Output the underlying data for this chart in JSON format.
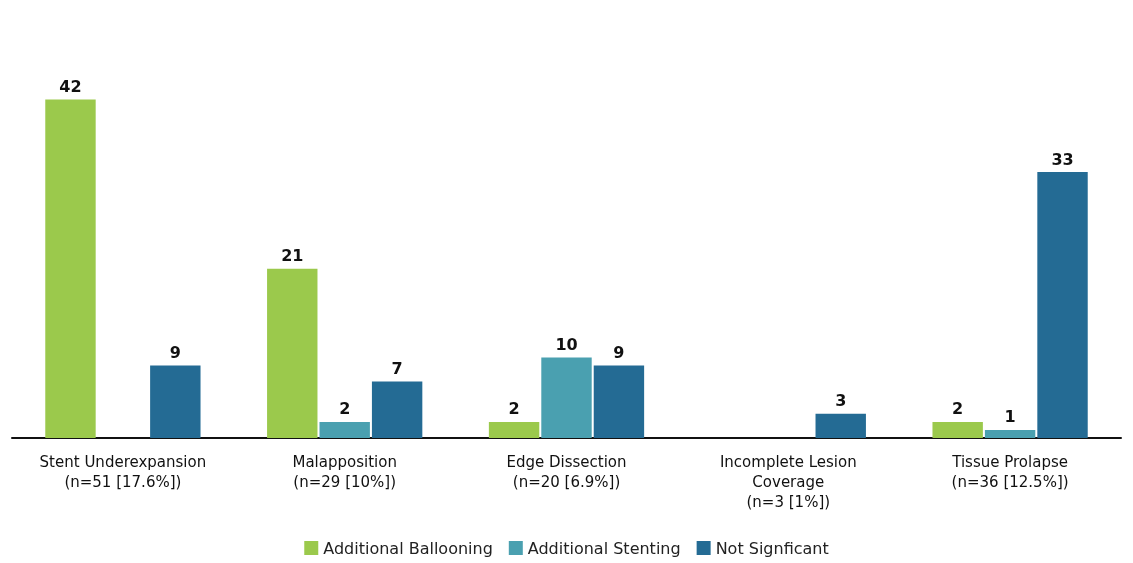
{
  "chart_data": {
    "type": "bar",
    "categories": [
      "Stent Underexpansion\n(n=51 [17.6%])",
      "Malapposition\n(n=29 [10%])",
      "Edge Dissection\n(n=20 [6.9%])",
      "Incomplete Lesion\nCoverage\n(n=3 [1%])",
      "Tissue Prolapse\n(n=36 [12.5%])"
    ],
    "series": [
      {
        "name": "Additional Ballooning",
        "color": "#9bc94c",
        "values": [
          42,
          21,
          2,
          null,
          2
        ]
      },
      {
        "name": "Additional Stenting",
        "color": "#4aa0b0",
        "values": [
          null,
          2,
          10,
          null,
          1
        ]
      },
      {
        "name": "Not Signficant",
        "color": "#246b94",
        "values": [
          9,
          7,
          9,
          3,
          33
        ]
      }
    ],
    "data_labels": true,
    "legend": "bottom",
    "tick_labels": "x"
  }
}
